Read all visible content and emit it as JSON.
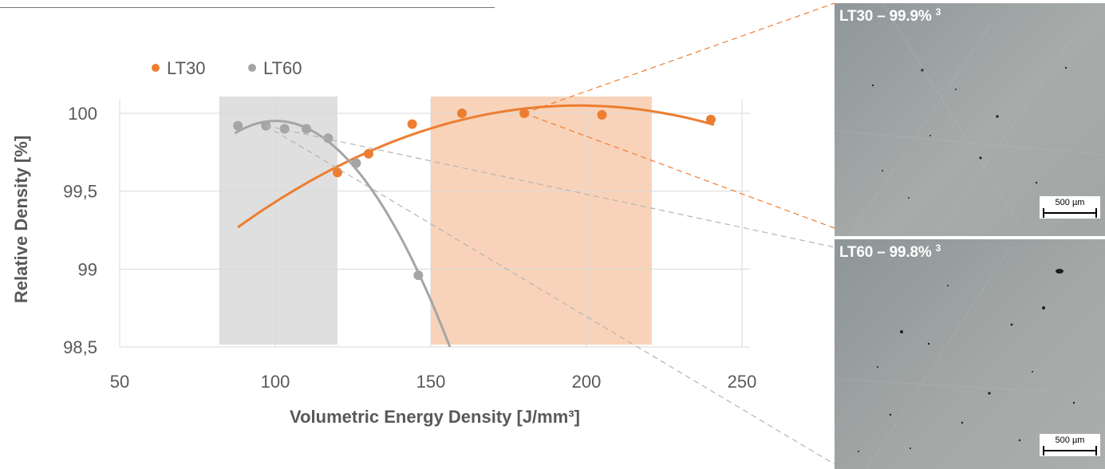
{
  "chart_data": {
    "type": "scatter",
    "xlabel": "Volumetric Energy Density [J/mm³]",
    "ylabel": "Relative Density [%]",
    "xlim": [
      50,
      250
    ],
    "ylim": [
      98.5,
      100
    ],
    "x_ticks": [
      "50",
      "100",
      "150",
      "200",
      "250"
    ],
    "y_ticks": [
      "98,5",
      "99",
      "99,5",
      "100"
    ],
    "grid": "vertical and horizontal",
    "legend": "top-left",
    "series": [
      {
        "name": "LT30",
        "color": "#ED7D31",
        "points": [
          [
            120,
            99.62
          ],
          [
            130,
            99.74
          ],
          [
            144,
            99.93
          ],
          [
            160,
            100.0
          ],
          [
            180,
            100.0
          ],
          [
            205,
            99.99
          ],
          [
            240,
            99.96
          ]
        ],
        "trend_x": [
          88,
          241
        ]
      },
      {
        "name": "LT60",
        "color": "#A5A5A5",
        "points": [
          [
            88,
            99.92
          ],
          [
            97,
            99.92
          ],
          [
            103,
            99.9
          ],
          [
            110,
            99.9
          ],
          [
            117,
            99.84
          ],
          [
            126,
            99.68
          ],
          [
            146,
            98.96
          ]
        ],
        "trend_x": [
          87,
          157
        ]
      }
    ],
    "shaded_ranges": [
      {
        "series": "LT60",
        "x": [
          82,
          120
        ],
        "color": "#D9D9D9"
      },
      {
        "series": "LT30",
        "x": [
          150,
          221
        ],
        "color": "#F8CBAD"
      }
    ]
  },
  "panels": [
    {
      "title": "LT30 – 99.9%",
      "superscript": "3",
      "scale_label": "500 µm"
    },
    {
      "title": "LT60 – 99.8%",
      "superscript": "3",
      "scale_label": "500 µm"
    }
  ]
}
